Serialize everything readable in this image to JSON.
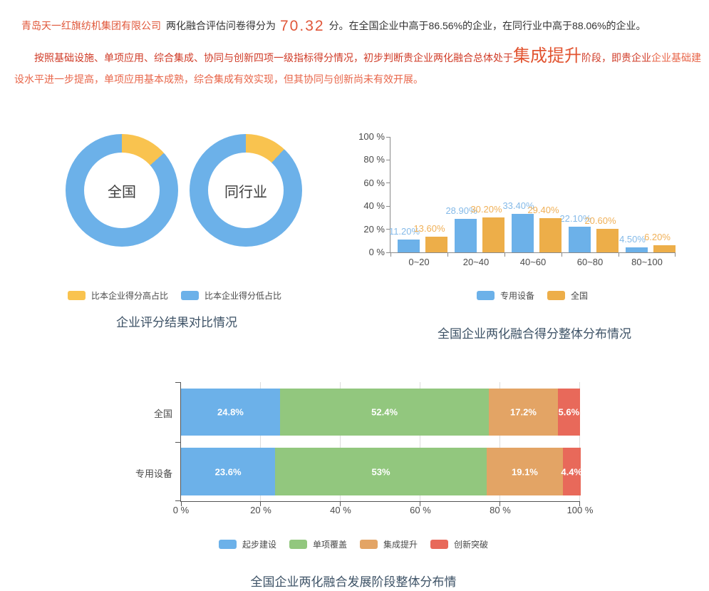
{
  "report": {
    "company_name": "青岛天一红旗纺机集团有限公司",
    "score_prefix": "两化融合评估问卷得分为",
    "score": "70.32",
    "score_suffix": "分。在全国企业中高于86.56%的企业，在同行业中高于88.06%的企业。",
    "assessment_main": "按照基础设施、单项应用、综合集成、协同与创新四项一级指标得分情况，初步判断贵企业两化融合总体处于",
    "assessment_stage": "集成提升",
    "assessment_mid": "阶段，即贵企业",
    "assessment_detail": "企业基础建设水平进一步提高，单项应用基本成熟，综合集成有效实现，但其协同与创新尚未有效开展。"
  },
  "colors": {
    "blue": "#6cb1e9",
    "donut_yellow": "#f9c34f",
    "bar_orange": "#edae49",
    "blue_label": "#85bae8",
    "orange_label": "#f0b057",
    "green": "#92c77e",
    "stage_orange": "#e3a465",
    "red": "#e8695a",
    "accent_orange": "#e0573a",
    "red_text": "#d03c28",
    "light_red_text": "#e8664a",
    "stage_big": "#e25431",
    "title_color": "#3d5266",
    "axis_label": "#4a4a4a",
    "axis_line": "#8a8a8a",
    "axis_line_dark": "#555555",
    "grid": "#dcdcdc",
    "text_dark": "#333333",
    "donut_label": "#3c3c3c"
  },
  "chart_data": [
    {
      "type": "pie",
      "title": "企业评分结果对比情况",
      "legend": [
        "比本企业得分高占比",
        "比本企业得分低占比"
      ],
      "donuts": [
        {
          "label": "全国",
          "higher_pct": 13.44,
          "lower_pct": 86.56
        },
        {
          "label": "同行业",
          "higher_pct": 11.94,
          "lower_pct": 88.06
        }
      ]
    },
    {
      "type": "bar",
      "title": "全国企业两化融合得分整体分布情况",
      "categories": [
        "0~20",
        "20~40",
        "40~60",
        "60~80",
        "80~100"
      ],
      "series": [
        {
          "name": "专用设备",
          "color_key": "blue",
          "values": [
            11.2,
            28.9,
            33.4,
            22.1,
            4.5
          ],
          "labels": [
            "11.20%",
            "28.90%",
            "33.40%",
            "22.10%",
            "4.50%"
          ]
        },
        {
          "name": "全国",
          "color_key": "bar_orange",
          "values": [
            13.6,
            30.2,
            29.4,
            20.6,
            6.2
          ],
          "labels": [
            "13.60%",
            "30.20%",
            "29.40%",
            "20.60%",
            "6.20%"
          ]
        }
      ],
      "y_ticks": [
        0,
        20,
        40,
        60,
        80,
        100
      ],
      "ylim": [
        0,
        100
      ],
      "ylabel_format": "{v} %",
      "legend_position": "bottom"
    },
    {
      "type": "stacked-bar-horizontal",
      "title": "全国企业两化融合发展阶段整体分布情况",
      "stages": [
        "起步建设",
        "单项覆盖",
        "集成提升",
        "创新突破"
      ],
      "stage_color_keys": [
        "blue",
        "green",
        "stage_orange",
        "red"
      ],
      "rows": [
        {
          "label": "全国",
          "values": [
            24.8,
            52.4,
            17.2,
            5.6
          ],
          "labels": [
            "24.8%",
            "52.4%",
            "17.2%",
            "5.6%"
          ]
        },
        {
          "label": "专用设备",
          "values": [
            23.6,
            53,
            19.1,
            4.4
          ],
          "labels": [
            "23.6%",
            "53%",
            "19.1%",
            "4.4%"
          ]
        }
      ],
      "x_ticks": [
        0,
        20,
        40,
        60,
        80,
        100
      ],
      "xlim": [
        0,
        100
      ],
      "grid": true,
      "legend_position": "bottom"
    }
  ]
}
